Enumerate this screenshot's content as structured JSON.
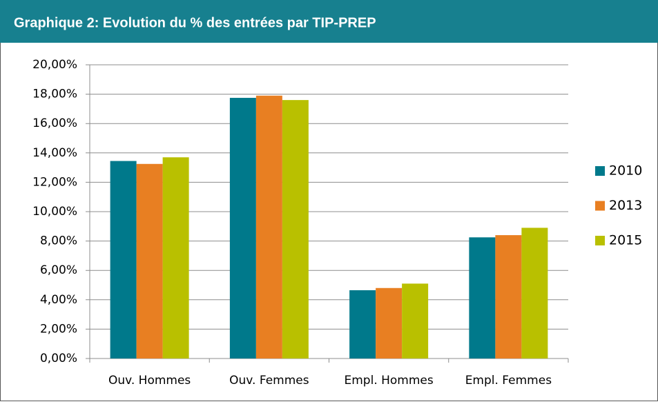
{
  "chart_data": {
    "type": "bar",
    "title": "Graphique 2: Evolution du % des entrées par TIP-PREP",
    "categories": [
      "Ouv. Hommes",
      "Ouv. Femmes",
      "Empl. Hommes",
      "Empl. Femmes"
    ],
    "series": [
      {
        "name": "2010",
        "color": "#00798b",
        "values": [
          13.45,
          17.75,
          4.65,
          8.25
        ]
      },
      {
        "name": "2013",
        "color": "#e87f22",
        "values": [
          13.25,
          17.9,
          4.8,
          8.4
        ]
      },
      {
        "name": "2015",
        "color": "#b9c000",
        "values": [
          13.7,
          17.6,
          5.1,
          8.9
        ]
      }
    ],
    "ylim": [
      0,
      20
    ],
    "yticks": [
      {
        "value": 0,
        "label": "0,00%"
      },
      {
        "value": 2,
        "label": "2,00%"
      },
      {
        "value": 4,
        "label": "4,00%"
      },
      {
        "value": 6,
        "label": "6,00%"
      },
      {
        "value": 8,
        "label": "8,00%"
      },
      {
        "value": 10,
        "label": "10,00%"
      },
      {
        "value": 12,
        "label": "12,00%"
      },
      {
        "value": 14,
        "label": "14,00%"
      },
      {
        "value": 16,
        "label": "16,00%"
      },
      {
        "value": 18,
        "label": "18,00%"
      },
      {
        "value": 20,
        "label": "20,00%"
      }
    ],
    "grid": true,
    "legend": "right"
  }
}
